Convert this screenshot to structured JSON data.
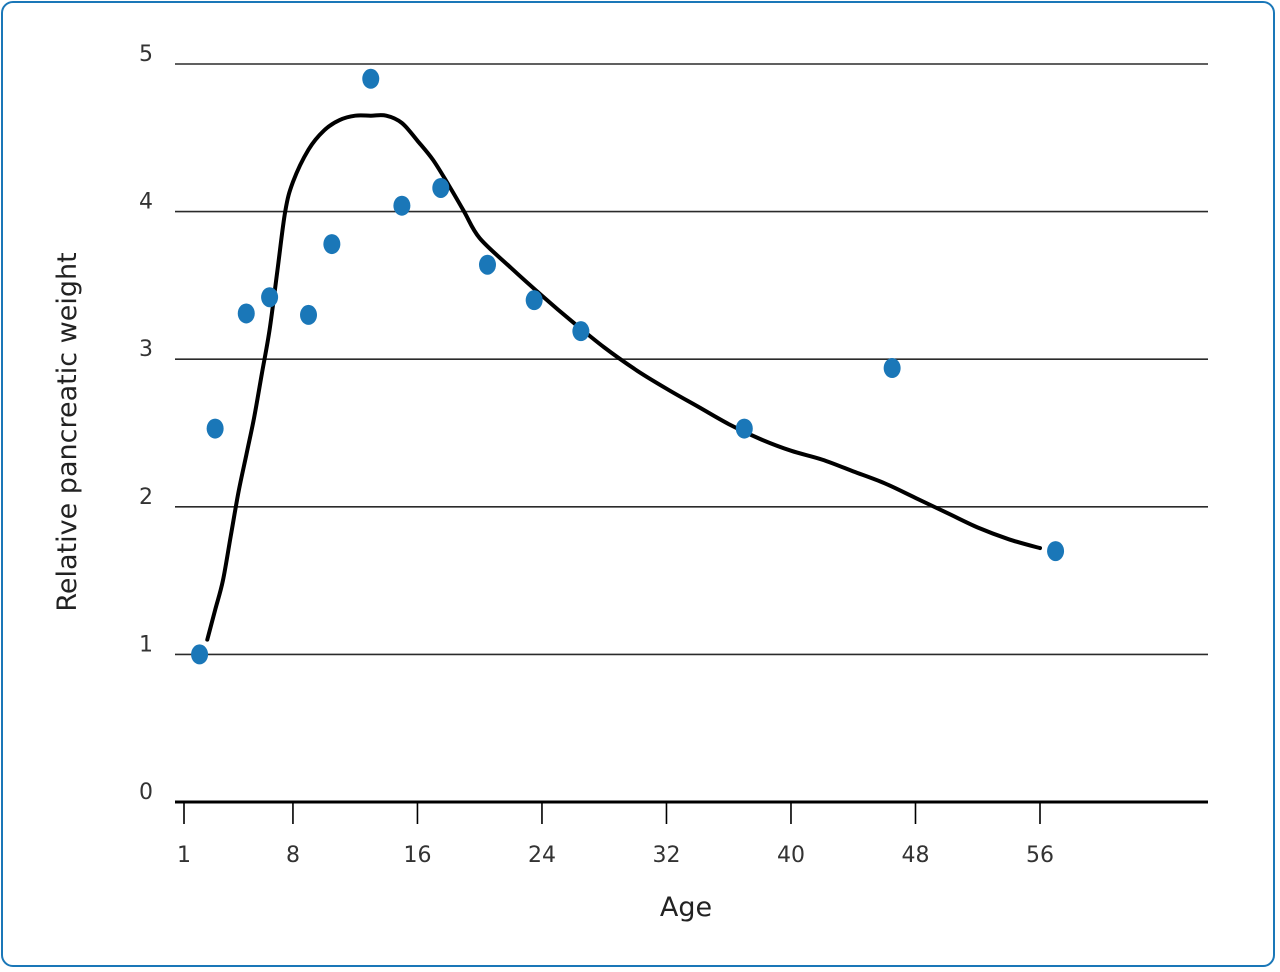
{
  "chart_data": {
    "type": "scatter",
    "title": "",
    "xlabel": "Age",
    "ylabel": "Relative pancreatic weight",
    "xlim": [
      1,
      56
    ],
    "ylim": [
      0,
      5
    ],
    "x_ticks": [
      1,
      8,
      16,
      24,
      32,
      40,
      48,
      56
    ],
    "x_tick_labels": [
      "1",
      "8",
      "16",
      "24",
      "32",
      "40",
      "48",
      "56"
    ],
    "y_ticks": [
      0,
      1,
      2,
      3,
      4,
      5
    ],
    "y_tick_labels": [
      "0",
      "1",
      "2",
      "3",
      "4",
      "5"
    ],
    "grid": "horizontal",
    "legend": "none",
    "series": [
      {
        "type": "scatter",
        "x": [
          2,
          3,
          5,
          6.5,
          9,
          10.5,
          13,
          15,
          17.5,
          20.5,
          23.5,
          26.5,
          37,
          46.5,
          57
        ],
        "y": [
          1.0,
          2.53,
          3.31,
          3.42,
          3.3,
          3.78,
          4.9,
          4.04,
          4.16,
          3.64,
          3.4,
          3.19,
          2.53,
          2.94,
          1.7
        ],
        "color": "#1a77b8"
      },
      {
        "type": "line",
        "x": [
          2.5,
          3,
          3.5,
          4,
          4.5,
          5,
          5.5,
          6,
          6.5,
          7,
          7.5,
          8,
          9,
          10,
          11,
          12,
          13,
          14,
          15,
          16,
          17,
          18,
          19,
          20,
          22,
          24,
          26,
          28,
          30,
          32,
          34,
          36,
          38,
          40,
          42,
          44,
          46,
          48,
          50,
          52,
          54,
          56
        ],
        "y": [
          1.1,
          1.3,
          1.5,
          1.8,
          2.1,
          2.35,
          2.6,
          2.9,
          3.2,
          3.6,
          4.0,
          4.2,
          4.42,
          4.55,
          4.62,
          4.65,
          4.65,
          4.65,
          4.6,
          4.48,
          4.35,
          4.18,
          4.0,
          3.82,
          3.62,
          3.43,
          3.25,
          3.08,
          2.93,
          2.8,
          2.68,
          2.56,
          2.46,
          2.38,
          2.32,
          2.24,
          2.16,
          2.06,
          1.96,
          1.86,
          1.78,
          1.72
        ],
        "color": "#000000"
      }
    ]
  }
}
